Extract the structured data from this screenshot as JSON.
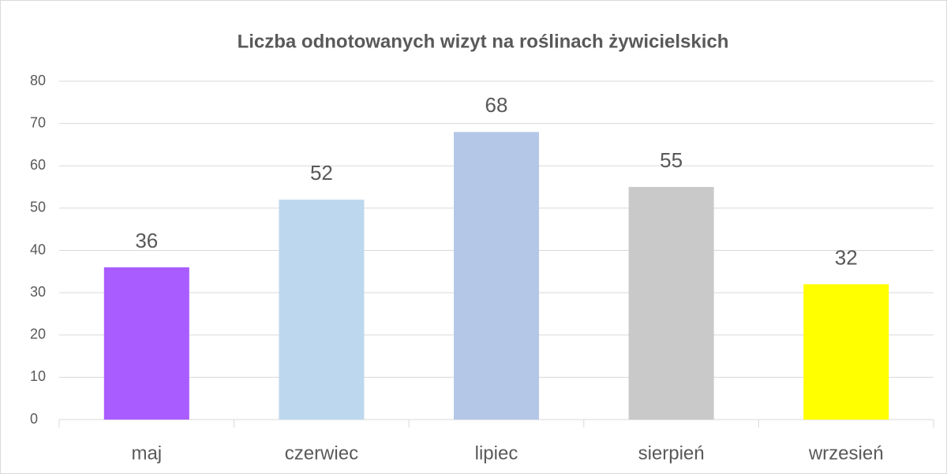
{
  "chart_data": {
    "type": "bar",
    "title": "Liczba odnotowanych wizyt na roślinach żywicielskich",
    "categories": [
      "maj",
      "czerwiec",
      "lipiec",
      "sierpień",
      "wrzesień"
    ],
    "values": [
      36,
      52,
      68,
      55,
      32
    ],
    "colors": [
      "#a95cff",
      "#bdd7ee",
      "#b4c7e7",
      "#c9c9c9",
      "#ffff00"
    ],
    "ylim": [
      0,
      80
    ],
    "yticks": [
      0,
      10,
      20,
      30,
      40,
      50,
      60,
      70,
      80
    ],
    "grid": true
  }
}
